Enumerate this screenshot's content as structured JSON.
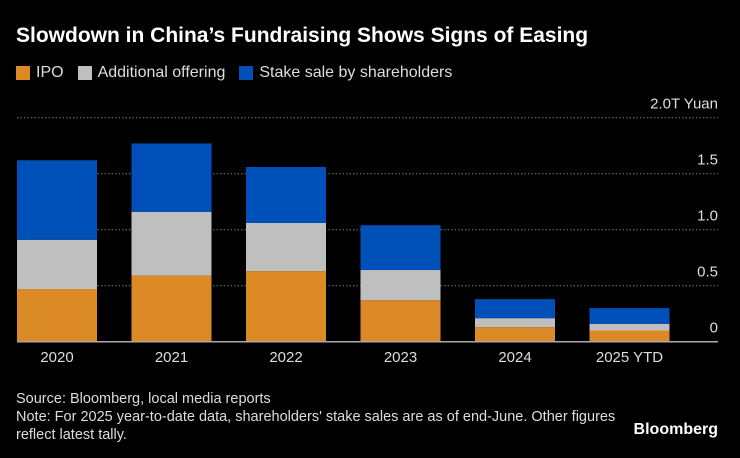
{
  "chart_data": {
    "type": "bar",
    "stacked": true,
    "title": "Slowdown in China’s Fundraising Shows Signs of Easing",
    "unit_label": "2.0T Yuan",
    "categories": [
      "2020",
      "2021",
      "2022",
      "2023",
      "2024",
      "2025 YTD"
    ],
    "series": [
      {
        "name": "IPO",
        "color": "#dc8a26",
        "values": [
          0.47,
          0.59,
          0.63,
          0.37,
          0.13,
          0.1
        ]
      },
      {
        "name": "Additional offering",
        "color": "#bfbfbf",
        "values": [
          0.44,
          0.57,
          0.43,
          0.27,
          0.08,
          0.06
        ]
      },
      {
        "name": "Stake sale by shareholders",
        "color": "#0050b9",
        "values": [
          0.71,
          0.61,
          0.5,
          0.4,
          0.17,
          0.14
        ]
      }
    ],
    "ylim": [
      0,
      2.0
    ],
    "yticks": [
      {
        "v": 0,
        "label": "0"
      },
      {
        "v": 0.5,
        "label": "0.5"
      },
      {
        "v": 1.0,
        "label": "1.0"
      },
      {
        "v": 1.5,
        "label": "1.5"
      },
      {
        "v": 2.0,
        "label": "2.0T Yuan"
      }
    ],
    "grid": true,
    "legend_position": "top-left"
  },
  "footer": {
    "source": "Source: Bloomberg, local media reports",
    "note": "Note: For 2025 year-to-date data, shareholders' stake sales are as of end-June. Other figures reflect latest tally."
  },
  "brand": "Bloomberg"
}
